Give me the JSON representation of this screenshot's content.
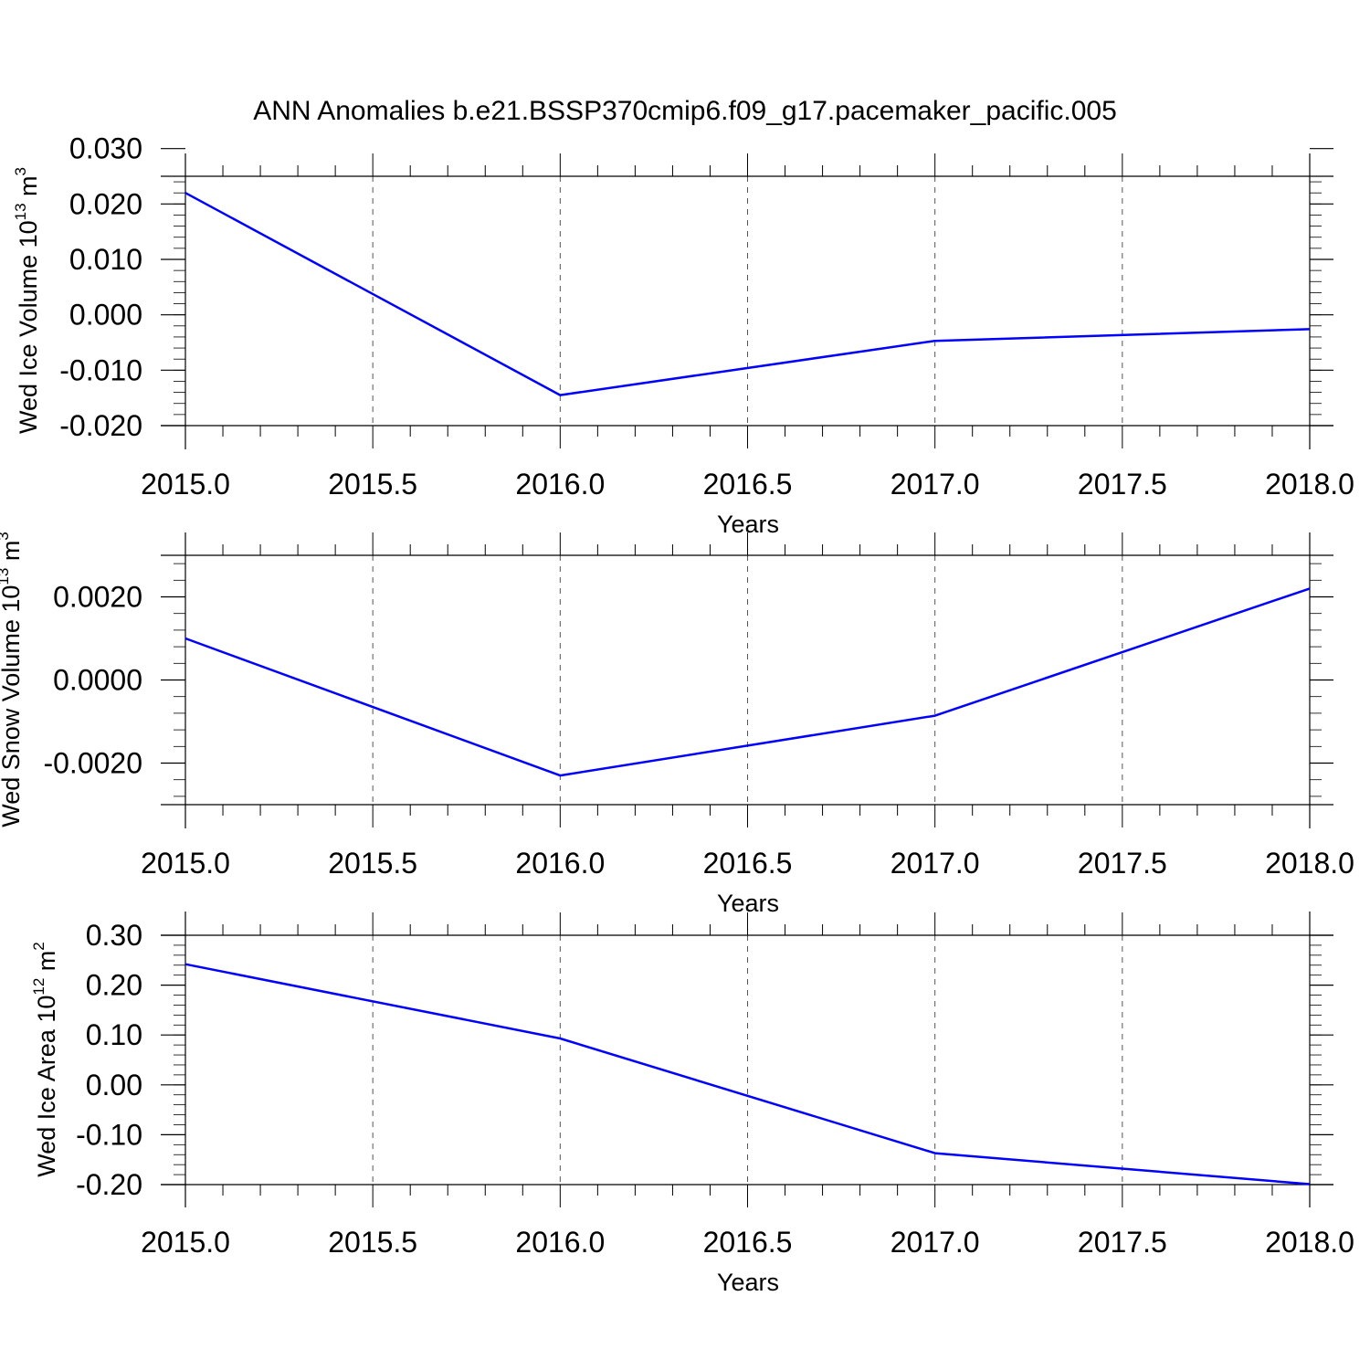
{
  "title": "ANN Anomalies b.e21.BSSP370cmip6.f09_g17.pacemaker_pacific.005",
  "colors": {
    "line": "#0000ff",
    "axis": "#000000",
    "grid": "#555555"
  },
  "chart_data": [
    {
      "type": "line",
      "ylabel": {
        "prefix": "Wed Ice Volume 10",
        "exponent": "13",
        "unit": " m",
        "unit_exponent": "3"
      },
      "xlabel": "Years",
      "xlim": [
        2015.0,
        2018.0
      ],
      "ylim": [
        -0.02,
        0.025
      ],
      "x_ticks": [
        "2015.0",
        "2015.5",
        "2016.0",
        "2016.5",
        "2017.0",
        "2017.5",
        "2018.0"
      ],
      "y_ticks": [
        "0.030",
        "0.020",
        "0.010",
        "0.000",
        "-0.010",
        "-0.020"
      ],
      "grid": "vertical dashed at major x ticks",
      "x": [
        2015,
        2016,
        2017,
        2018
      ],
      "y": [
        0.022,
        -0.0145,
        -0.0047,
        -0.0026
      ]
    },
    {
      "type": "line",
      "ylabel": {
        "prefix": "Wed Snow Volume 10",
        "exponent": "13",
        "unit": " m",
        "unit_exponent": "3"
      },
      "xlabel": "Years",
      "xlim": [
        2015.0,
        2018.0
      ],
      "ylim": [
        -0.003,
        0.003
      ],
      "x_ticks": [
        "2015.0",
        "2015.5",
        "2016.0",
        "2016.5",
        "2017.0",
        "2017.5",
        "2018.0"
      ],
      "y_ticks": [
        "0.0020",
        "0.0000",
        "-0.0020"
      ],
      "grid": "vertical dashed at major x ticks",
      "x": [
        2015,
        2016,
        2017,
        2018
      ],
      "y": [
        0.001,
        -0.0023,
        -0.00086,
        0.0022
      ]
    },
    {
      "type": "line",
      "ylabel": {
        "prefix": "Wed Ice Area 10",
        "exponent": "12",
        "unit": " m",
        "unit_exponent": "2"
      },
      "xlabel": "Years",
      "xlim": [
        2015.0,
        2018.0
      ],
      "ylim": [
        -0.2,
        0.3
      ],
      "x_ticks": [
        "2015.0",
        "2015.5",
        "2016.0",
        "2016.5",
        "2017.0",
        "2017.5",
        "2018.0"
      ],
      "y_ticks": [
        "0.30",
        "0.20",
        "0.10",
        "0.00",
        "-0.10",
        "-0.20"
      ],
      "grid": "vertical dashed at major x ticks",
      "x": [
        2015,
        2016,
        2017,
        2018
      ],
      "y": [
        0.242,
        0.093,
        -0.137,
        -0.199
      ]
    }
  ]
}
